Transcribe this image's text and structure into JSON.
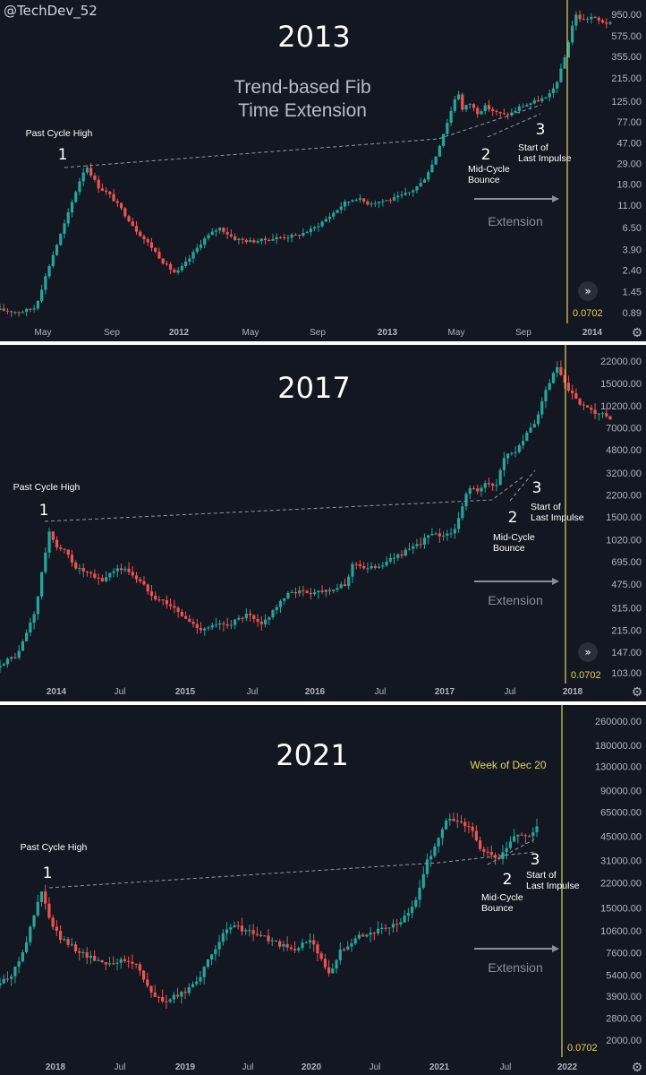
{
  "handle": "@TechDev_52",
  "colors": {
    "bg": "#131722",
    "up": "#26a69a",
    "down": "#ef5350",
    "text": "#ffffff",
    "axis": "#b2b5be",
    "fib": "#e8d44d",
    "grid": "#8a8e99"
  },
  "chart_data": [
    {
      "type": "candlestick",
      "title": "2013",
      "subtitle": [
        "Trend-based Fib",
        "Time Extension"
      ],
      "scale": "log",
      "y_ticks": [
        "950.00",
        "575.00",
        "355.00",
        "215.00",
        "125.00",
        "77.00",
        "47.00",
        "29.00",
        "18.00",
        "11.00",
        "6.50",
        "3.90",
        "2.40",
        "1.45",
        "0.89"
      ],
      "x_ticks": [
        "May",
        "Sep",
        "2012",
        "May",
        "Sep",
        "2013",
        "May",
        "Sep",
        "2014"
      ],
      "fib_label": "0.0702",
      "extension_label": "Extension",
      "annotations": [
        {
          "num": "1",
          "label": [
            "Past Cycle High"
          ]
        },
        {
          "num": "2",
          "label": [
            "Mid-Cycle",
            "Bounce"
          ]
        },
        {
          "num": "3",
          "label": [
            "Start of",
            "Last Impulse"
          ]
        }
      ],
      "price_path": [
        [
          0,
          0.95
        ],
        [
          0.05,
          0.9
        ],
        [
          0.09,
          1.0
        ],
        [
          0.13,
          3
        ],
        [
          0.17,
          8
        ],
        [
          0.2,
          18
        ],
        [
          0.22,
          28
        ],
        [
          0.25,
          17
        ],
        [
          0.28,
          14
        ],
        [
          0.31,
          10
        ],
        [
          0.35,
          6
        ],
        [
          0.39,
          4
        ],
        [
          0.42,
          2.8
        ],
        [
          0.45,
          2.2
        ],
        [
          0.48,
          3
        ],
        [
          0.52,
          4.9
        ],
        [
          0.56,
          6.5
        ],
        [
          0.6,
          5
        ],
        [
          0.64,
          4.7
        ],
        [
          0.68,
          4.9
        ],
        [
          0.72,
          5.2
        ],
        [
          0.76,
          5.4
        ],
        [
          0.8,
          6.3
        ],
        [
          0.84,
          8.3
        ],
        [
          0.88,
          11.5
        ],
        [
          0.91,
          13
        ],
        [
          0.94,
          11.5
        ],
        [
          0.97,
          12
        ],
        [
          1.0,
          12.5
        ],
        [
          1.02,
          13.3
        ],
        [
          1.05,
          15
        ],
        [
          1.08,
          19
        ],
        [
          1.11,
          31
        ],
        [
          1.14,
          70
        ],
        [
          1.16,
          120
        ],
        [
          1.17,
          170
        ],
        [
          1.18,
          100
        ],
        [
          1.2,
          120
        ],
        [
          1.22,
          95
        ],
        [
          1.24,
          110
        ],
        [
          1.27,
          95
        ],
        [
          1.29,
          90
        ],
        [
          1.31,
          95
        ],
        [
          1.33,
          110
        ],
        [
          1.36,
          120
        ],
        [
          1.38,
          130
        ],
        [
          1.4,
          135
        ],
        [
          1.42,
          180
        ],
        [
          1.44,
          300
        ],
        [
          1.46,
          650
        ],
        [
          1.47,
          950
        ],
        [
          1.49,
          820
        ],
        [
          1.51,
          900
        ],
        [
          1.53,
          820
        ],
        [
          1.56,
          760
        ]
      ]
    },
    {
      "type": "candlestick",
      "title": "2017",
      "scale": "log",
      "y_ticks": [
        "22000.00",
        "15000.00",
        "10200.00",
        "7000.00",
        "4800.00",
        "3200.00",
        "2200.00",
        "1500.00",
        "1020.00",
        "695.00",
        "475.00",
        "315.00",
        "215.00",
        "147.00",
        "103.00"
      ],
      "x_ticks": [
        "2014",
        "Jul",
        "2015",
        "Jul",
        "2016",
        "Jul",
        "2017",
        "Jul",
        "2018"
      ],
      "fib_label": "0.0702",
      "extension_label": "Extension",
      "annotations": [
        {
          "num": "1",
          "label": [
            "Past Cycle High"
          ]
        },
        {
          "num": "2",
          "label": [
            "Mid-Cycle",
            "Bounce"
          ]
        },
        {
          "num": "3",
          "label": [
            "Start of",
            "Last Impulse"
          ]
        }
      ],
      "price_path": [
        [
          0,
          120
        ],
        [
          0.04,
          140
        ],
        [
          0.08,
          300
        ],
        [
          0.11,
          1150
        ],
        [
          0.13,
          900
        ],
        [
          0.15,
          820
        ],
        [
          0.17,
          640
        ],
        [
          0.2,
          560
        ],
        [
          0.23,
          500
        ],
        [
          0.26,
          620
        ],
        [
          0.29,
          600
        ],
        [
          0.32,
          480
        ],
        [
          0.35,
          380
        ],
        [
          0.38,
          340
        ],
        [
          0.42,
          260
        ],
        [
          0.45,
          220
        ],
        [
          0.48,
          230
        ],
        [
          0.52,
          240
        ],
        [
          0.56,
          280
        ],
        [
          0.59,
          230
        ],
        [
          0.62,
          310
        ],
        [
          0.66,
          420
        ],
        [
          0.7,
          410
        ],
        [
          0.74,
          430
        ],
        [
          0.78,
          460
        ],
        [
          0.8,
          700
        ],
        [
          0.83,
          610
        ],
        [
          0.87,
          680
        ],
        [
          0.9,
          780
        ],
        [
          0.94,
          900
        ],
        [
          0.97,
          1100
        ],
        [
          1.0,
          1100
        ],
        [
          1.03,
          1200
        ],
        [
          1.06,
          2600
        ],
        [
          1.08,
          2300
        ],
        [
          1.1,
          2700
        ],
        [
          1.12,
          2500
        ],
        [
          1.14,
          4200
        ],
        [
          1.16,
          4500
        ],
        [
          1.18,
          5500
        ],
        [
          1.21,
          7500
        ],
        [
          1.23,
          12000
        ],
        [
          1.25,
          17000
        ],
        [
          1.26,
          19800
        ],
        [
          1.28,
          14000
        ],
        [
          1.3,
          11500
        ],
        [
          1.32,
          10000
        ],
        [
          1.34,
          9000
        ],
        [
          1.36,
          8800
        ],
        [
          1.38,
          7800
        ]
      ]
    },
    {
      "type": "candlestick",
      "title": "2021",
      "scale": "log",
      "y_ticks": [
        "260000.00",
        "180000.00",
        "130000.00",
        "90000.00",
        "65000.00",
        "45000.00",
        "31000.00",
        "22000.00",
        "15000.00",
        "10600.00",
        "7600.00",
        "5400.00",
        "3900.00",
        "2800.00",
        "2000.00"
      ],
      "x_ticks": [
        "2018",
        "Jul",
        "2019",
        "Jul",
        "2020",
        "Jul",
        "2021",
        "Jul",
        "2022"
      ],
      "fib_label": "0.0702",
      "fib_title": "Week of Dec 20",
      "extension_label": "Extension",
      "annotations": [
        {
          "num": "1",
          "label": [
            "Past Cycle High"
          ]
        },
        {
          "num": "2",
          "label": [
            "Mid-Cycle",
            "Bounce"
          ]
        },
        {
          "num": "3",
          "label": [
            "Start of",
            "Last Impulse"
          ]
        }
      ],
      "price_path": [
        [
          0,
          4800
        ],
        [
          0.03,
          5600
        ],
        [
          0.06,
          9500
        ],
        [
          0.09,
          19500
        ],
        [
          0.11,
          12000
        ],
        [
          0.13,
          9500
        ],
        [
          0.16,
          8200
        ],
        [
          0.19,
          7200
        ],
        [
          0.23,
          6500
        ],
        [
          0.27,
          6700
        ],
        [
          0.3,
          6300
        ],
        [
          0.33,
          4000
        ],
        [
          0.36,
          3600
        ],
        [
          0.4,
          4100
        ],
        [
          0.44,
          5500
        ],
        [
          0.48,
          9500
        ],
        [
          0.51,
          11500
        ],
        [
          0.54,
          10500
        ],
        [
          0.57,
          9800
        ],
        [
          0.6,
          8800
        ],
        [
          0.64,
          7800
        ],
        [
          0.68,
          9500
        ],
        [
          0.7,
          6800
        ],
        [
          0.72,
          5200
        ],
        [
          0.74,
          7800
        ],
        [
          0.78,
          9800
        ],
        [
          0.82,
          10500
        ],
        [
          0.86,
          11500
        ],
        [
          0.89,
          13500
        ],
        [
          0.91,
          18500
        ],
        [
          0.93,
          30000
        ],
        [
          0.95,
          40000
        ],
        [
          0.97,
          56000
        ],
        [
          0.99,
          58000
        ],
        [
          1.01,
          55000
        ],
        [
          1.03,
          48000
        ],
        [
          1.05,
          36000
        ],
        [
          1.07,
          33000
        ],
        [
          1.09,
          32000
        ],
        [
          1.11,
          40000
        ],
        [
          1.13,
          48000
        ],
        [
          1.15,
          44000
        ],
        [
          1.17,
          52000
        ]
      ]
    }
  ]
}
